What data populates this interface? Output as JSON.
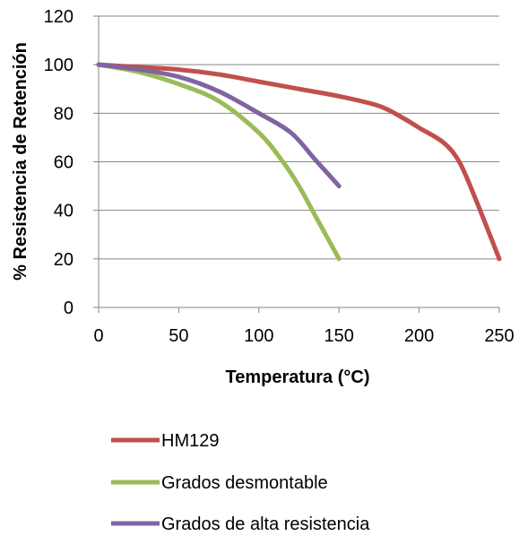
{
  "chart_data": {
    "type": "line",
    "title": "",
    "xlabel": "Temperatura (°C)",
    "ylabel": "% Resistencia de Retención",
    "xlim": [
      0,
      250
    ],
    "ylim": [
      0,
      120
    ],
    "xticks": [
      0,
      50,
      100,
      150,
      200,
      250
    ],
    "yticks": [
      0,
      20,
      40,
      60,
      80,
      100,
      120
    ],
    "grid": "horizontal",
    "legend_position": "bottom",
    "series": [
      {
        "name": "HM129",
        "color": "#c0504d",
        "x": [
          0,
          25,
          50,
          75,
          100,
          125,
          150,
          175,
          190,
          200,
          215,
          225,
          235,
          250
        ],
        "y": [
          100,
          99,
          98,
          96,
          93,
          90,
          87,
          83,
          78,
          74,
          68,
          60,
          45,
          20
        ]
      },
      {
        "name": "Grados desmontable",
        "color": "#9bbb59",
        "x": [
          0,
          25,
          50,
          75,
          100,
          115,
          125,
          135,
          150
        ],
        "y": [
          100,
          97,
          92,
          85,
          72,
          60,
          50,
          38,
          20
        ]
      },
      {
        "name": "Grados de alta resistencia",
        "color": "#8064a2",
        "x": [
          0,
          25,
          50,
          75,
          100,
          120,
          135,
          150
        ],
        "y": [
          100,
          98,
          95,
          89,
          80,
          72,
          61,
          50
        ]
      }
    ]
  }
}
